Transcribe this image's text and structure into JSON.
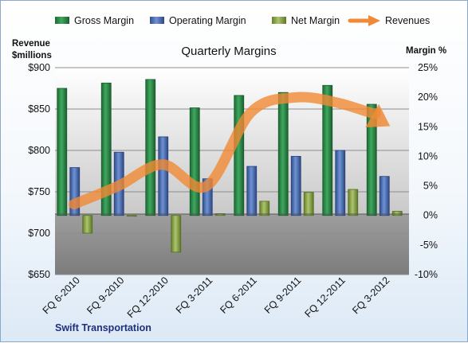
{
  "chart_data": {
    "type": "bar",
    "title": "Quarterly Margins",
    "company": "Swift Transportation",
    "categories": [
      "FQ 6-2010",
      "FQ 9-2010",
      "FQ 12-2010",
      "FQ 3-2011",
      "FQ 6-2011",
      "FQ 9-2011",
      "FQ 12-2011",
      "FQ 3-2012"
    ],
    "left_axis": {
      "title_line1": "Revenue",
      "title_line2": "$millions",
      "min": 650,
      "max": 900,
      "ticks": [
        650,
        700,
        750,
        800,
        850,
        900
      ],
      "tick_labels": [
        "$650",
        "$700",
        "$750",
        "$800",
        "$850",
        "$900"
      ]
    },
    "right_axis": {
      "title": "Margin %",
      "min": -10,
      "max": 25,
      "ticks": [
        -10,
        -5,
        0,
        5,
        10,
        15,
        20,
        25
      ],
      "tick_labels": [
        "-10%",
        "-5%",
        "0%",
        "5%",
        "10%",
        "15%",
        "20%",
        "25%"
      ]
    },
    "series": [
      {
        "name": "Gross Margin",
        "type": "bar",
        "axis": "right",
        "color": "#2e8b4a",
        "values": [
          21.5,
          22.4,
          23.0,
          18.2,
          20.3,
          20.8,
          22.0,
          18.8
        ]
      },
      {
        "name": "Operating Margin",
        "type": "bar",
        "axis": "right",
        "color": "#4a6fb5",
        "values": [
          8.1,
          10.7,
          13.3,
          6.2,
          8.3,
          10.0,
          11.0,
          6.6
        ]
      },
      {
        "name": "Net Margin",
        "type": "bar",
        "axis": "right",
        "color": "#8aa64a",
        "values": [
          -3.0,
          -0.1,
          -6.2,
          0.3,
          2.4,
          3.9,
          4.4,
          0.7
        ]
      },
      {
        "name": "Revenues",
        "type": "line",
        "axis": "left",
        "color": "#f08a35",
        "values": [
          735,
          757,
          783,
          757,
          846,
          864,
          857,
          839
        ]
      }
    ],
    "grid": true,
    "legend_position": "top"
  }
}
